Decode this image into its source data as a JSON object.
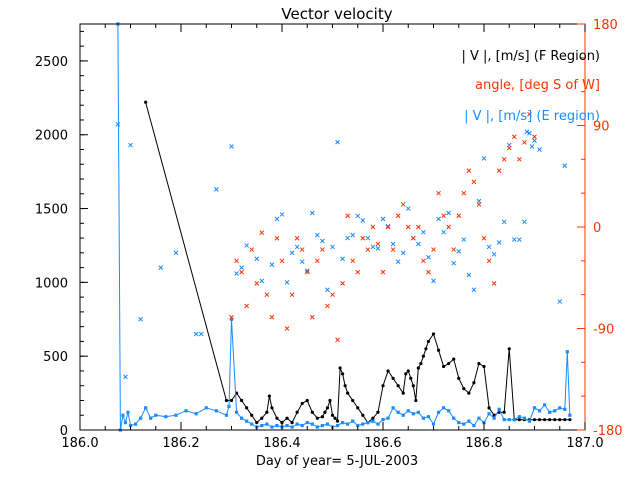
{
  "chart_data": {
    "type": "line",
    "title": "Vector velocity",
    "xlabel": "Day of year= 5-JUL-2003",
    "xlim": [
      186.0,
      187.0
    ],
    "x_ticks": [
      186.0,
      186.2,
      186.4,
      186.6,
      186.8,
      187.0
    ],
    "x_tick_labels": [
      "186.0",
      "186.2",
      "186.4",
      "186.6",
      "186.8",
      "187.0"
    ],
    "ylim_left": [
      0,
      2750
    ],
    "y_ticks_left": [
      0,
      500,
      1000,
      1500,
      2000,
      2500
    ],
    "y_tick_labels_left": [
      "0",
      "500",
      "1000",
      "1500",
      "2000",
      "2500"
    ],
    "ylim_right": [
      -180,
      180
    ],
    "y_ticks_right": [
      -180,
      -90,
      0,
      90,
      180
    ],
    "y_tick_labels_right": [
      "-180",
      "-90",
      "0",
      "90",
      "180"
    ],
    "colors": {
      "f_region": "#000000",
      "angle": "#ff3300",
      "e_region": "#1a8cff",
      "axis_right": "#ff3300"
    },
    "legend": [
      {
        "label": "| V |, [m/s] (F Region)",
        "color": "#000000"
      },
      {
        "label": "angle, [deg S of W]",
        "color": "#ff3300"
      },
      {
        "label": "| V |, [m/s] (E region)",
        "color": "#1a8cff"
      }
    ],
    "series": [
      {
        "name": "| V |, [m/s] (F Region)",
        "style": "line-dots",
        "color": "#000000",
        "x": [
          186.13,
          186.29,
          186.3,
          186.31,
          186.32,
          186.33,
          186.34,
          186.35,
          186.36,
          186.37,
          186.375,
          186.38,
          186.39,
          186.4,
          186.41,
          186.42,
          186.43,
          186.44,
          186.45,
          186.46,
          186.47,
          186.48,
          186.485,
          186.49,
          186.495,
          186.5,
          186.505,
          186.51,
          186.515,
          186.52,
          186.525,
          186.53,
          186.54,
          186.55,
          186.56,
          186.57,
          186.58,
          186.59,
          186.6,
          186.61,
          186.62,
          186.63,
          186.64,
          186.645,
          186.65,
          186.655,
          186.66,
          186.665,
          186.67,
          186.675,
          186.68,
          186.685,
          186.69,
          186.7,
          186.71,
          186.72,
          186.73,
          186.74,
          186.75,
          186.76,
          186.77,
          186.78,
          186.79,
          186.8,
          186.81,
          186.82,
          186.83,
          186.84,
          186.85,
          186.86,
          186.87,
          186.88,
          186.89,
          186.9,
          186.91,
          186.92,
          186.93,
          186.94,
          186.95,
          186.96,
          186.97
        ],
        "y": [
          2220,
          200,
          200,
          250,
          200,
          150,
          100,
          50,
          80,
          120,
          230,
          150,
          80,
          50,
          80,
          50,
          120,
          180,
          200,
          120,
          80,
          90,
          120,
          150,
          200,
          100,
          80,
          60,
          420,
          380,
          300,
          250,
          200,
          150,
          100,
          50,
          80,
          120,
          300,
          400,
          350,
          300,
          250,
          380,
          400,
          350,
          300,
          200,
          420,
          450,
          500,
          550,
          600,
          650,
          540,
          430,
          450,
          480,
          350,
          280,
          250,
          320,
          450,
          430,
          150,
          100,
          120,
          120,
          550,
          70,
          70,
          70,
          70,
          70,
          70,
          70,
          70,
          70,
          70,
          70,
          70
        ]
      },
      {
        "name": "| V |, [m/s] (E region) series",
        "style": "line-squares",
        "color": "#1a8cff",
        "x": [
          186.075,
          186.08,
          186.085,
          186.09,
          186.095,
          186.1,
          186.11,
          186.12,
          186.13,
          186.14,
          186.15,
          186.17,
          186.19,
          186.21,
          186.23,
          186.25,
          186.27,
          186.29,
          186.295,
          186.3,
          186.31,
          186.32,
          186.33,
          186.34,
          186.35,
          186.36,
          186.37,
          186.38,
          186.39,
          186.4,
          186.41,
          186.42,
          186.43,
          186.44,
          186.45,
          186.46,
          186.47,
          186.48,
          186.49,
          186.5,
          186.51,
          186.52,
          186.53,
          186.54,
          186.55,
          186.56,
          186.57,
          186.58,
          186.59,
          186.6,
          186.61,
          186.62,
          186.63,
          186.64,
          186.65,
          186.66,
          186.67,
          186.68,
          186.69,
          186.7,
          186.71,
          186.72,
          186.73,
          186.74,
          186.75,
          186.76,
          186.77,
          186.78,
          186.79,
          186.8,
          186.81,
          186.82,
          186.83,
          186.84,
          186.85,
          186.86,
          186.87,
          186.88,
          186.89,
          186.9,
          186.91,
          186.92,
          186.93,
          186.94,
          186.95,
          186.96,
          186.965,
          186.97
        ],
        "y": [
          2750,
          0,
          100,
          50,
          120,
          30,
          40,
          80,
          150,
          80,
          100,
          90,
          100,
          130,
          110,
          150,
          130,
          100,
          160,
          750,
          120,
          80,
          60,
          40,
          20,
          30,
          40,
          20,
          30,
          20,
          30,
          20,
          40,
          30,
          50,
          40,
          20,
          30,
          40,
          20,
          30,
          50,
          40,
          60,
          30,
          40,
          50,
          60,
          40,
          70,
          80,
          150,
          120,
          100,
          130,
          110,
          120,
          80,
          90,
          40,
          120,
          150,
          130,
          80,
          50,
          40,
          60,
          30,
          80,
          50,
          110,
          80,
          140,
          70,
          70,
          70,
          90,
          80,
          60,
          150,
          130,
          170,
          120,
          130,
          150,
          140,
          530,
          100
        ]
      },
      {
        "name": "| V |, [m/s] (E region) scatter",
        "style": "cross",
        "color": "#1a8cff",
        "x": [
          186.075,
          186.09,
          186.1,
          186.12,
          186.16,
          186.19,
          186.23,
          186.24,
          186.27,
          186.3,
          186.31,
          186.32,
          186.33,
          186.35,
          186.36,
          186.38,
          186.39,
          186.4,
          186.41,
          186.42,
          186.43,
          186.44,
          186.45,
          186.46,
          186.47,
          186.48,
          186.49,
          186.5,
          186.51,
          186.52,
          186.53,
          186.54,
          186.55,
          186.56,
          186.57,
          186.58,
          186.59,
          186.6,
          186.61,
          186.62,
          186.63,
          186.64,
          186.65,
          186.66,
          186.67,
          186.68,
          186.69,
          186.7,
          186.71,
          186.72,
          186.73,
          186.74,
          186.75,
          186.76,
          186.77,
          186.78,
          186.79,
          186.8,
          186.81,
          186.82,
          186.83,
          186.84,
          186.85,
          186.86,
          186.87,
          186.88,
          186.885,
          186.89,
          186.895,
          186.9,
          186.91,
          186.95,
          186.96
        ],
        "y": [
          2070,
          360,
          1930,
          750,
          1100,
          1200,
          650,
          650,
          1630,
          1920,
          1060,
          1100,
          1250,
          1160,
          1010,
          1120,
          1430,
          1460,
          1000,
          1200,
          1240,
          1140,
          1080,
          1470,
          1320,
          1280,
          950,
          1240,
          1950,
          1160,
          1300,
          1320,
          1450,
          1420,
          1300,
          1240,
          1230,
          1430,
          1380,
          1260,
          1140,
          1200,
          1500,
          1300,
          1260,
          1340,
          1170,
          1010,
          1430,
          1340,
          1470,
          1130,
          1210,
          1290,
          1050,
          950,
          1550,
          1840,
          1240,
          1190,
          1270,
          1410,
          1930,
          1290,
          1290,
          1410,
          2020,
          2010,
          1920,
          1960,
          1900,
          870,
          1790
        ]
      },
      {
        "name": "angle, [deg S of W]",
        "style": "cross",
        "color": "#ff3300",
        "axis": "right",
        "x": [
          186.3,
          186.31,
          186.32,
          186.33,
          186.34,
          186.35,
          186.36,
          186.37,
          186.38,
          186.39,
          186.4,
          186.41,
          186.42,
          186.43,
          186.44,
          186.45,
          186.46,
          186.47,
          186.48,
          186.49,
          186.5,
          186.51,
          186.52,
          186.53,
          186.54,
          186.55,
          186.56,
          186.57,
          186.58,
          186.59,
          186.6,
          186.61,
          186.62,
          186.63,
          186.64,
          186.65,
          186.66,
          186.67,
          186.68,
          186.69,
          186.7,
          186.71,
          186.72,
          186.73,
          186.74,
          186.75,
          186.76,
          186.77,
          186.78,
          186.79,
          186.8,
          186.81,
          186.82,
          186.83,
          186.84,
          186.85,
          186.86,
          186.87,
          186.88,
          186.89,
          186.9
        ],
        "y": [
          -80,
          -30,
          -40,
          -70,
          -20,
          -50,
          -5,
          -60,
          -80,
          -10,
          -30,
          -90,
          -60,
          -10,
          -20,
          -40,
          -80,
          -30,
          -20,
          -70,
          -60,
          -100,
          -50,
          10,
          -30,
          -40,
          -10,
          -20,
          0,
          -15,
          -40,
          0,
          -20,
          10,
          20,
          0,
          -10,
          0,
          -30,
          -40,
          -20,
          30,
          10,
          0,
          -20,
          10,
          30,
          50,
          40,
          20,
          -10,
          -30,
          -50,
          50,
          60,
          70,
          80,
          60,
          75,
          100,
          80
        ]
      }
    ]
  }
}
